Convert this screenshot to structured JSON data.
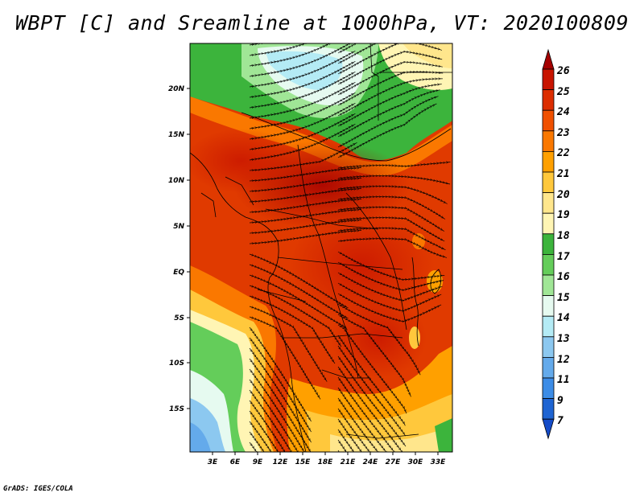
{
  "title": "WBPT [C] and Sreamline at 1000hPa, VT: 2020100809",
  "credit": "GrADS: IGES/COLA",
  "map": {
    "variable": "Wet-bulb potential temperature",
    "units": "C",
    "level": "1000hPa",
    "valid_time": "2020100809",
    "lat_labels": [
      "20N",
      "15N",
      "10N",
      "5N",
      "EQ",
      "5S",
      "10S",
      "15S"
    ],
    "lon_labels": [
      "3E",
      "6E",
      "9E",
      "12E",
      "15E",
      "18E",
      "21E",
      "24E",
      "27E",
      "30E",
      "33E"
    ],
    "lat_range": [
      -20,
      24
    ],
    "lon_range": [
      0,
      35
    ]
  },
  "colorbar": {
    "labels": [
      "26",
      "25",
      "24",
      "23",
      "22",
      "21",
      "20",
      "19",
      "18",
      "17",
      "16",
      "15",
      "14",
      "13",
      "12",
      "11",
      "9",
      "7"
    ],
    "colors": [
      "#a50000",
      "#c81400",
      "#dc2d00",
      "#f05000",
      "#fa7800",
      "#ffa000",
      "#ffc83c",
      "#ffe68c",
      "#fff5b4",
      "#3cb43c",
      "#64cd5a",
      "#a0e696",
      "#e6faf0",
      "#b4ebf5",
      "#8cc8f0",
      "#64aaeb",
      "#3c8ce6",
      "#1e64d2",
      "#144bc8"
    ]
  }
}
